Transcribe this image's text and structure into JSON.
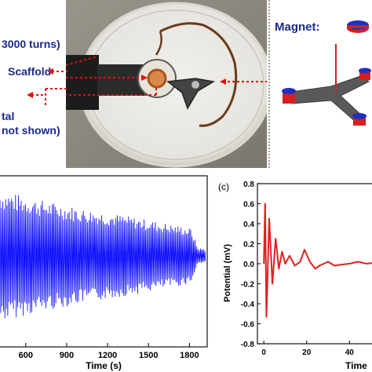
{
  "figure": {
    "panel_a": {
      "labels": {
        "coil": "3000 turns)",
        "scaffold": "Scaffold",
        "metal": "tal",
        "not_shown": "not shown)",
        "magnet": "Magnet:"
      }
    },
    "panel_b": {
      "xlabel": "Time (s)",
      "xticks": [
        "600",
        "900",
        "1200",
        "1500",
        "1800"
      ]
    },
    "panel_c": {
      "panel_label": "(c)",
      "ylabel": "Potential (mV)",
      "xlabel_partial": "Time",
      "yticks": [
        "0.8",
        "0.6",
        "0.4",
        "0.2",
        "0.0",
        "-0.2",
        "-0.4",
        "-0.6",
        "-0.8"
      ],
      "xticks": [
        "0",
        "20",
        "40"
      ]
    },
    "colors": {
      "label_blue": "#1a2a8a",
      "signal_blue": "#0000ff",
      "signal_red": "#e02020",
      "arrow_red": "#e01010"
    }
  },
  "chart_data": [
    {
      "type": "line",
      "panel": "b",
      "title": "",
      "xlabel": "Time (s)",
      "ylabel": "",
      "xlim": [
        400,
        1930
      ],
      "x_ticks": [
        600,
        900,
        1200,
        1500,
        1800
      ],
      "description_of_signal": "dense oscillating potential whose envelope decays from ~1 at start to ~0.15 after 1850 s",
      "envelope": {
        "x": [
          400,
          700,
          1000,
          1300,
          1600,
          1800,
          1850,
          1930
        ],
        "amplitude": [
          1.0,
          0.85,
          0.72,
          0.62,
          0.5,
          0.42,
          0.12,
          0.1
        ]
      },
      "series": [
        {
          "values": []
        }
      ]
    },
    {
      "type": "line",
      "panel": "c",
      "title": "",
      "xlabel": "Time",
      "ylabel": "Potential (mV)",
      "xlim": [
        -3,
        52
      ],
      "ylim": [
        -0.8,
        0.8
      ],
      "x_ticks": [
        0,
        20,
        40
      ],
      "y_ticks": [
        -0.8,
        -0.6,
        -0.4,
        -0.2,
        0.0,
        0.2,
        0.4,
        0.6,
        0.8
      ],
      "series": [
        {
          "x": [
            0,
            0.6,
            1.2,
            2.5,
            4,
            5.5,
            7,
            8.5,
            10,
            12,
            14.5,
            17,
            19,
            21.5,
            24,
            26,
            28,
            30,
            33,
            36,
            40,
            44,
            48,
            52
          ],
          "values": [
            0.0,
            0.6,
            -0.53,
            0.45,
            -0.2,
            0.25,
            -0.05,
            0.12,
            0.0,
            0.08,
            -0.02,
            0.02,
            0.14,
            0.02,
            -0.05,
            -0.02,
            0.0,
            0.02,
            -0.02,
            -0.01,
            0.0,
            0.02,
            0.0,
            0.01
          ]
        }
      ]
    }
  ]
}
